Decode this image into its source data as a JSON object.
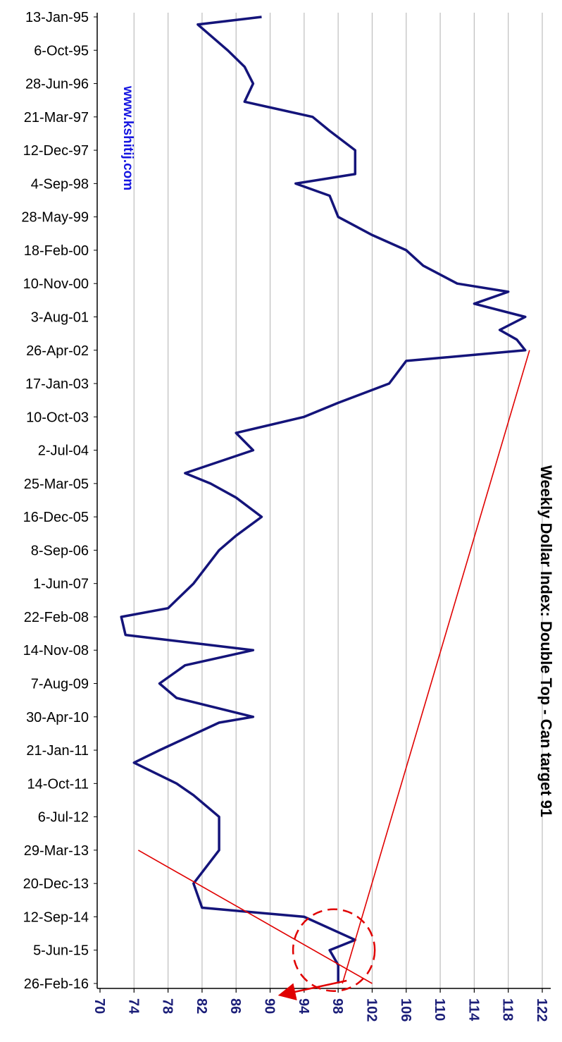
{
  "chart_data": {
    "type": "line",
    "title": "Weekly Dollar Index: Double Top - Can target 91",
    "watermark": "www.kshitij.com",
    "x_tick_labels": [
      "13-Jan-95",
      "6-Oct-95",
      "28-Jun-96",
      "21-Mar-97",
      "12-Dec-97",
      "4-Sep-98",
      "28-May-99",
      "18-Feb-00",
      "10-Nov-00",
      "3-Aug-01",
      "26-Apr-02",
      "17-Jan-03",
      "10-Oct-03",
      "2-Jul-04",
      "25-Mar-05",
      "16-Dec-05",
      "8-Sep-06",
      "1-Jun-07",
      "22-Feb-08",
      "14-Nov-08",
      "7-Aug-09",
      "30-Apr-10",
      "21-Jan-11",
      "14-Oct-11",
      "6-Jul-12",
      "29-Mar-13",
      "20-Dec-13",
      "12-Sep-14",
      "5-Jun-15",
      "26-Feb-16"
    ],
    "y_ticks": [
      70,
      74,
      78,
      82,
      86,
      90,
      94,
      98,
      102,
      106,
      110,
      114,
      118,
      122
    ],
    "ylim": [
      70,
      122
    ],
    "grid": true,
    "series": [
      {
        "color": "#14147a",
        "x": [
          "13-Jan-95",
          "15-Mar-95",
          "6-Oct-95",
          "15-Feb-96",
          "28-Jun-96",
          "20-Nov-96",
          "21-Mar-97",
          "10-Jul-97",
          "12-Dec-97",
          "20-Jun-98",
          "4-Sep-98",
          "10-Dec-98",
          "28-May-99",
          "20-Oct-99",
          "18-Feb-00",
          "20-Jun-00",
          "10-Nov-00",
          "15-Jan-01",
          "20-Apr-01",
          "3-Aug-01",
          "15-Nov-01",
          "31-Jan-02",
          "26-Apr-02",
          "20-Jul-02",
          "17-Jan-03",
          "20-Jun-03",
          "10-Oct-03",
          "15-Feb-04",
          "2-Jul-04",
          "1-Jan-05",
          "25-Mar-05",
          "15-Jul-05",
          "16-Dec-05",
          "15-May-06",
          "8-Sep-06",
          "1-Jun-07",
          "15-Dec-07",
          "22-Feb-08",
          "15-Jul-08",
          "14-Nov-08",
          "15-Mar-09",
          "7-Aug-09",
          "30-Nov-09",
          "30-Apr-10",
          "15-Jun-10",
          "21-Jan-11",
          "1-May-11",
          "14-Oct-11",
          "15-Jan-12",
          "6-Jul-12",
          "29-Mar-13",
          "20-Dec-13",
          "1-Jul-14",
          "12-Sep-14",
          "15-Mar-15",
          "5-Jun-15",
          "1-Oct-15",
          "26-Feb-16"
        ],
        "values": [
          89,
          81.5,
          85,
          87,
          88,
          87,
          95,
          97,
          100,
          100,
          93,
          97,
          98,
          102,
          106,
          108,
          112,
          118,
          114,
          120,
          117,
          119,
          120,
          106,
          104,
          98,
          94,
          86,
          88,
          80,
          83,
          86,
          89,
          86,
          84,
          81,
          78,
          72.5,
          73,
          88,
          80,
          77,
          79,
          88,
          84,
          77,
          74,
          79,
          81,
          84,
          84,
          81,
          82,
          94,
          100,
          97,
          98,
          98
        ]
      }
    ],
    "annotations": [
      {
        "type": "trendline",
        "from": {
          "x": "29-Mar-13",
          "y": 74.5
        },
        "to": {
          "x": "26-Feb-16",
          "y": 102
        }
      },
      {
        "type": "trendline",
        "from": {
          "x": "26-Apr-02",
          "y": 120.5
        },
        "to": {
          "x": "26-Feb-16",
          "y": 98.5
        }
      },
      {
        "type": "dashed-circle",
        "center": {
          "x": "5-Jun-15",
          "y": 97.5
        },
        "label": ""
      },
      {
        "type": "arrow",
        "target_value": 91
      }
    ]
  }
}
